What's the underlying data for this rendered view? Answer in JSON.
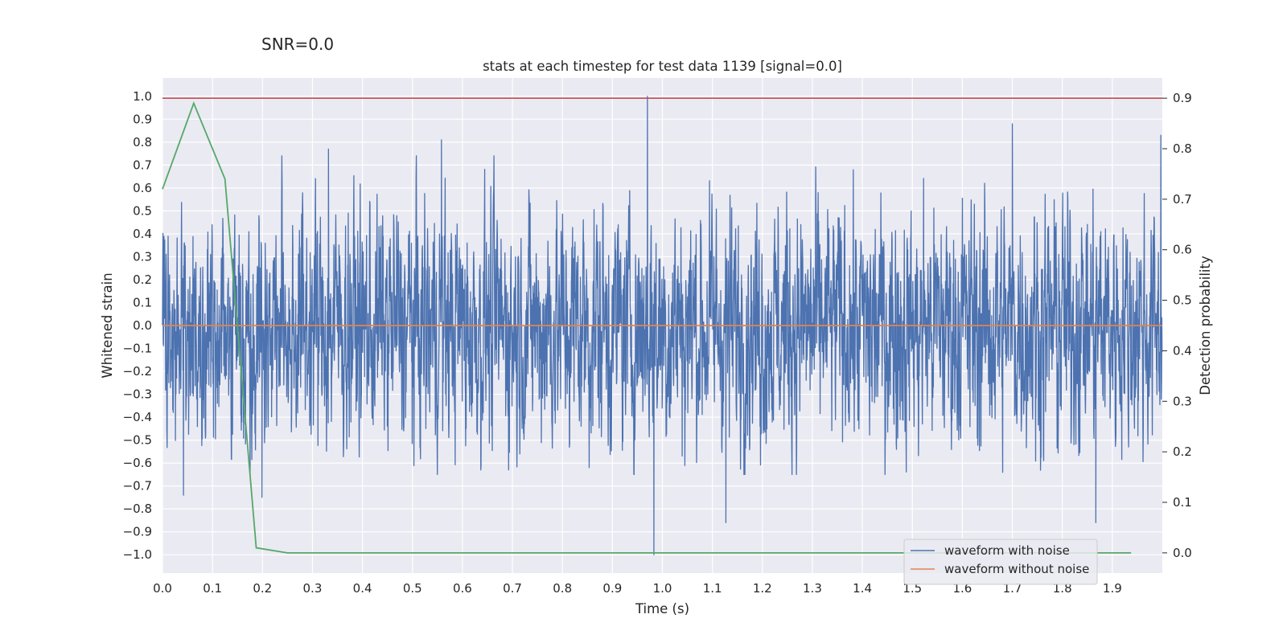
{
  "snr_label": "SNR=0.0",
  "chart_data": {
    "type": "line",
    "title": "stats at each timestep for test data 1139 [signal=0.0]",
    "xlabel": "Time (s)",
    "ylabel": "Whitened strain",
    "y2label": "Detection probability",
    "xlim": [
      0.0,
      2.0
    ],
    "ylim": [
      -1.08,
      1.08
    ],
    "y2lim": [
      -0.04,
      0.94
    ],
    "xticks": [
      0.0,
      0.1,
      0.2,
      0.3,
      0.4,
      0.5,
      0.6,
      0.7,
      0.8,
      0.9,
      1.0,
      1.1,
      1.2,
      1.3,
      1.4,
      1.5,
      1.6,
      1.7,
      1.8,
      1.9
    ],
    "yticks": [
      1.0,
      0.9,
      0.8,
      0.7,
      0.6,
      0.5,
      0.4,
      0.3,
      0.2,
      0.1,
      0.0,
      -0.1,
      -0.2,
      -0.3,
      -0.4,
      -0.5,
      -0.6,
      -0.7,
      -0.8,
      -0.9,
      -1.0
    ],
    "y2ticks": [
      0.9,
      0.8,
      0.7,
      0.6,
      0.5,
      0.4,
      0.3,
      0.2,
      0.1,
      0.0
    ],
    "grid": true,
    "legend_placement": "lower-right",
    "sampling_rate_hz": 2048,
    "colors": {
      "background": "#eaeaf2",
      "grid": "#ffffff",
      "noisy": "#4c72b0",
      "clean": "#dd8452",
      "probability": "#55a868",
      "threshold": "#c44e52"
    },
    "series": [
      {
        "name": "waveform with noise",
        "axis": "left",
        "values_note": "dense noise, 2048 Hz, roughly uniform in [-0.65, 0.75]",
        "extremes": [
          {
            "x": 0.042,
            "y": -0.74
          },
          {
            "x": 0.199,
            "y": -0.75
          },
          {
            "x": 0.332,
            "y": 0.77
          },
          {
            "x": 0.558,
            "y": 0.81
          },
          {
            "x": 0.97,
            "y": 1.0
          },
          {
            "x": 0.983,
            "y": -1.0
          },
          {
            "x": 1.127,
            "y": -0.86
          },
          {
            "x": 1.7,
            "y": 0.88
          },
          {
            "x": 1.867,
            "y": -0.86
          },
          {
            "x": 1.997,
            "y": 0.83
          }
        ]
      },
      {
        "name": "waveform without noise",
        "axis": "left",
        "x": [
          0.0,
          2.0
        ],
        "y": [
          0.0,
          0.0
        ]
      },
      {
        "axis": "right",
        "x": [
          0.0,
          0.0625,
          0.125,
          0.1875,
          0.25,
          0.3125,
          0.5,
          1.0,
          1.5,
          1.9375
        ],
        "y": [
          0.72,
          0.89,
          0.74,
          0.01,
          0.0,
          0.0,
          0.0,
          0.0,
          0.0,
          0.0
        ]
      },
      {
        "axis": "right",
        "x": [
          0.0,
          2.0
        ],
        "y": [
          0.9,
          0.9
        ]
      }
    ]
  }
}
